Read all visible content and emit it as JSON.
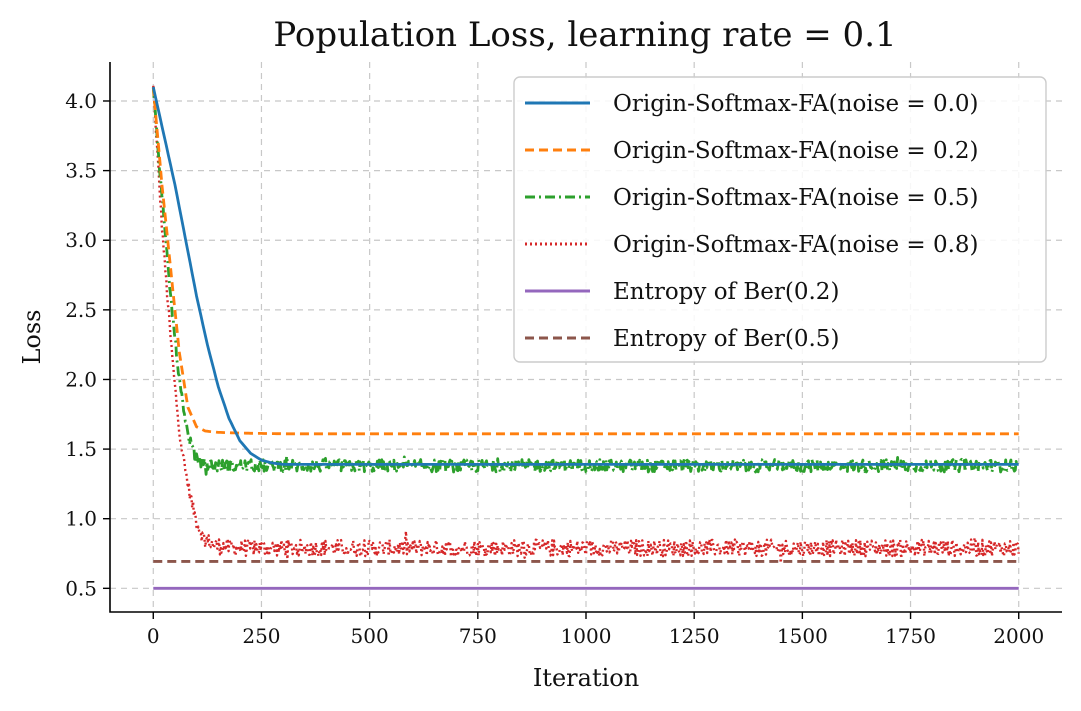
{
  "chart_data": {
    "type": "line",
    "title": "Population Loss, learning rate = 0.1",
    "xlabel": "Iteration",
    "ylabel": "Loss",
    "xlim": [
      -100,
      2100
    ],
    "ylim": [
      0.33,
      4.28
    ],
    "xticks": [
      0,
      250,
      500,
      750,
      1000,
      1250,
      1500,
      1750,
      2000
    ],
    "xtick_labels": [
      "0",
      "250",
      "500",
      "750",
      "1000",
      "1250",
      "1500",
      "1750",
      "2000"
    ],
    "yticks": [
      0.5,
      1.0,
      1.5,
      2.0,
      2.5,
      3.0,
      3.5,
      4.0
    ],
    "ytick_labels": [
      "0.5",
      "1.0",
      "1.5",
      "2.0",
      "2.5",
      "3.0",
      "3.5",
      "4.0"
    ],
    "grid": true,
    "legend_position": "top-right",
    "series": [
      {
        "name": "Origin-Softmax-FA(noise = 0.0)",
        "color": "#1f77b4",
        "style": "solid",
        "x": [
          0,
          25,
          50,
          75,
          100,
          125,
          150,
          175,
          200,
          225,
          250,
          275,
          300,
          350,
          400,
          2000
        ],
        "y": [
          4.1,
          3.75,
          3.4,
          3.0,
          2.6,
          2.25,
          1.95,
          1.72,
          1.56,
          1.47,
          1.42,
          1.4,
          1.39,
          1.39,
          1.39,
          1.39
        ]
      },
      {
        "name": "Origin-Softmax-FA(noise = 0.2)",
        "color": "#ff7f0e",
        "style": "dashed",
        "x": [
          0,
          20,
          40,
          60,
          80,
          100,
          120,
          150,
          200,
          300,
          2000
        ],
        "y": [
          4.1,
          3.4,
          2.8,
          2.2,
          1.8,
          1.66,
          1.63,
          1.62,
          1.615,
          1.61,
          1.61
        ]
      },
      {
        "name": "Origin-Softmax-FA(noise = 0.5)",
        "color": "#2ca02c",
        "style": "dashdot",
        "x": [
          0,
          20,
          40,
          60,
          80,
          100,
          120,
          150,
          200,
          2000
        ],
        "y": [
          4.1,
          3.3,
          2.6,
          2.0,
          1.6,
          1.43,
          1.39,
          1.38,
          1.38,
          1.38
        ],
        "noise_amplitude": 0.045
      },
      {
        "name": "Origin-Softmax-FA(noise = 0.8)",
        "color": "#d62728",
        "style": "dotted",
        "x": [
          0,
          10,
          20,
          30,
          40,
          50,
          60,
          70,
          80,
          90,
          100,
          110,
          120,
          140,
          160,
          200,
          2000
        ],
        "y": [
          4.1,
          3.6,
          3.1,
          2.7,
          2.3,
          1.95,
          1.65,
          1.42,
          1.25,
          1.1,
          0.98,
          0.9,
          0.85,
          0.81,
          0.8,
          0.79,
          0.79
        ],
        "noise_amplitude": 0.06
      },
      {
        "name": "Entropy of Ber(0.2)",
        "color": "#9467bd",
        "style": "solid",
        "x": [
          0,
          2000
        ],
        "y": [
          0.5,
          0.5
        ]
      },
      {
        "name": "Entropy of Ber(0.5)",
        "color": "#8c564b",
        "style": "dashed",
        "x": [
          0,
          2000
        ],
        "y": [
          0.693,
          0.693
        ]
      }
    ]
  }
}
